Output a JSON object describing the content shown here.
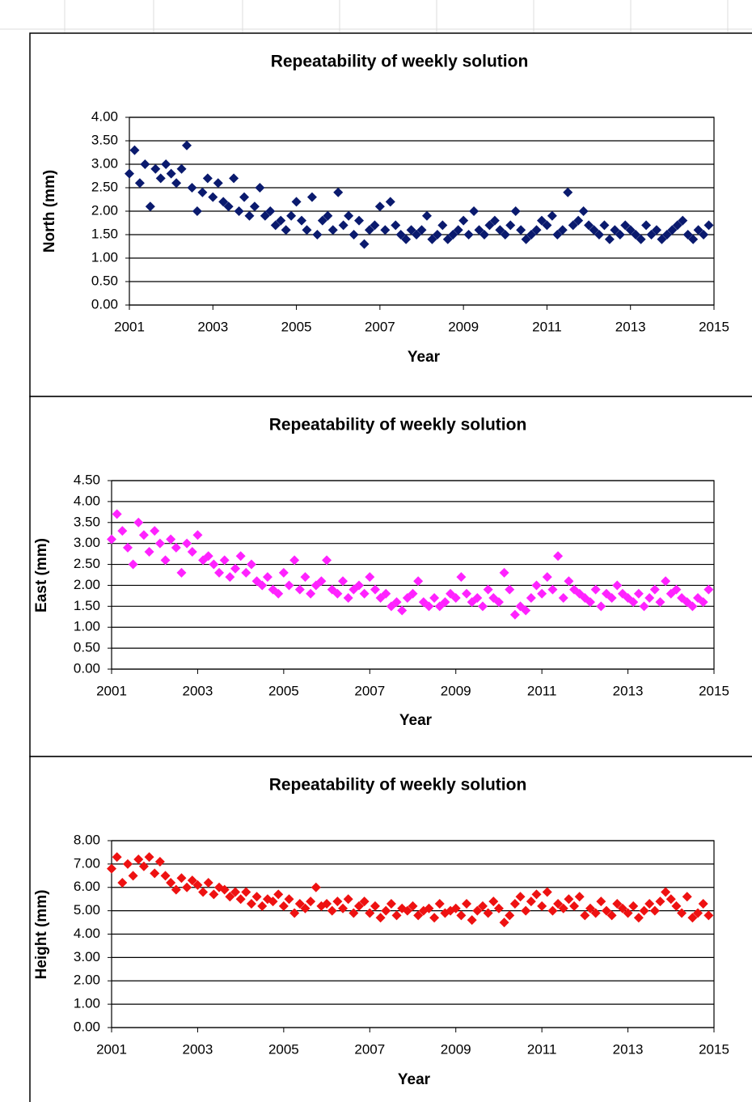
{
  "chart_data": [
    {
      "type": "scatter",
      "title": "Repeatability of weekly solution",
      "xlabel": "Year",
      "ylabel": "North (mm)",
      "color": "#0a1a6e",
      "grid": true,
      "xlim": [
        2001,
        2015
      ],
      "xticks": [
        2001,
        2003,
        2005,
        2007,
        2009,
        2011,
        2013,
        2015
      ],
      "ylim": [
        0,
        4
      ],
      "yticks": [
        {
          "value": 0,
          "label": "0.00"
        },
        {
          "value": 0.5,
          "label": "0.50"
        },
        {
          "value": 1,
          "label": "1.00"
        },
        {
          "value": 1.5,
          "label": "1.50"
        },
        {
          "value": 2,
          "label": "2.00"
        },
        {
          "value": 2.5,
          "label": "2.50"
        },
        {
          "value": 3,
          "label": "3.00"
        },
        {
          "value": 3.5,
          "label": "3.50"
        },
        {
          "value": 4,
          "label": "4.00"
        }
      ],
      "x": [
        2001,
        2001.125,
        2001.25,
        2001.375,
        2001.5,
        2001.625,
        2001.75,
        2001.875,
        2002,
        2002.125,
        2002.25,
        2002.375,
        2002.5,
        2002.625,
        2002.75,
        2002.875,
        2003,
        2003.125,
        2003.25,
        2003.375,
        2003.5,
        2003.625,
        2003.75,
        2003.875,
        2004,
        2004.125,
        2004.25,
        2004.375,
        2004.5,
        2004.625,
        2004.75,
        2004.875,
        2005,
        2005.125,
        2005.25,
        2005.375,
        2005.5,
        2005.625,
        2005.75,
        2005.875,
        2006,
        2006.125,
        2006.25,
        2006.375,
        2006.5,
        2006.625,
        2006.75,
        2006.875,
        2007,
        2007.125,
        2007.25,
        2007.375,
        2007.5,
        2007.625,
        2007.75,
        2007.875,
        2008,
        2008.125,
        2008.25,
        2008.375,
        2008.5,
        2008.625,
        2008.75,
        2008.875,
        2009,
        2009.125,
        2009.25,
        2009.375,
        2009.5,
        2009.625,
        2009.75,
        2009.875,
        2010,
        2010.125,
        2010.25,
        2010.375,
        2010.5,
        2010.625,
        2010.75,
        2010.875,
        2011,
        2011.125,
        2011.25,
        2011.375,
        2011.5,
        2011.625,
        2011.75,
        2011.875,
        2012,
        2012.125,
        2012.25,
        2012.375,
        2012.5,
        2012.625,
        2012.75,
        2012.875,
        2013,
        2013.125,
        2013.25,
        2013.375,
        2013.5,
        2013.625,
        2013.75,
        2013.875,
        2014,
        2014.125,
        2014.25,
        2014.375,
        2014.5,
        2014.625,
        2014.75,
        2014.875
      ],
      "values": [
        2.8,
        3.3,
        2.6,
        3.0,
        2.1,
        2.9,
        2.7,
        3.0,
        2.8,
        2.6,
        2.9,
        3.4,
        2.5,
        2.0,
        2.4,
        2.7,
        2.3,
        2.6,
        2.2,
        2.1,
        2.7,
        2.0,
        2.3,
        1.9,
        2.1,
        2.5,
        1.9,
        2.0,
        1.7,
        1.8,
        1.6,
        1.9,
        2.2,
        1.8,
        1.6,
        2.3,
        1.5,
        1.8,
        1.9,
        1.6,
        2.4,
        1.7,
        1.9,
        1.5,
        1.8,
        1.3,
        1.6,
        1.7,
        2.1,
        1.6,
        2.2,
        1.7,
        1.5,
        1.4,
        1.6,
        1.5,
        1.6,
        1.9,
        1.4,
        1.5,
        1.7,
        1.4,
        1.5,
        1.6,
        1.8,
        1.5,
        2.0,
        1.6,
        1.5,
        1.7,
        1.8,
        1.6,
        1.5,
        1.7,
        2.0,
        1.6,
        1.4,
        1.5,
        1.6,
        1.8,
        1.7,
        1.9,
        1.5,
        1.6,
        2.4,
        1.7,
        1.8,
        2.0,
        1.7,
        1.6,
        1.5,
        1.7,
        1.4,
        1.6,
        1.5,
        1.7,
        1.6,
        1.5,
        1.4,
        1.7,
        1.5,
        1.6,
        1.4,
        1.5,
        1.6,
        1.7,
        1.8,
        1.5,
        1.4,
        1.6,
        1.5,
        1.7
      ]
    },
    {
      "type": "scatter",
      "title": "Repeatability of weekly solution",
      "xlabel": "Year",
      "ylabel": "East (mm)",
      "color": "#ff22ff",
      "grid": true,
      "xlim": [
        2001,
        2015
      ],
      "xticks": [
        2001,
        2003,
        2005,
        2007,
        2009,
        2011,
        2013,
        2015
      ],
      "ylim": [
        0,
        4.5
      ],
      "yticks": [
        {
          "value": 0,
          "label": "0.00"
        },
        {
          "value": 0.5,
          "label": "0.50"
        },
        {
          "value": 1,
          "label": "1.00"
        },
        {
          "value": 1.5,
          "label": "1.50"
        },
        {
          "value": 2,
          "label": "2.00"
        },
        {
          "value": 2.5,
          "label": "2.50"
        },
        {
          "value": 3,
          "label": "3.00"
        },
        {
          "value": 3.5,
          "label": "3.50"
        },
        {
          "value": 4,
          "label": "4.00"
        },
        {
          "value": 4.5,
          "label": "4.50"
        }
      ],
      "x": [
        2001,
        2001.125,
        2001.25,
        2001.375,
        2001.5,
        2001.625,
        2001.75,
        2001.875,
        2002,
        2002.125,
        2002.25,
        2002.375,
        2002.5,
        2002.625,
        2002.75,
        2002.875,
        2003,
        2003.125,
        2003.25,
        2003.375,
        2003.5,
        2003.625,
        2003.75,
        2003.875,
        2004,
        2004.125,
        2004.25,
        2004.375,
        2004.5,
        2004.625,
        2004.75,
        2004.875,
        2005,
        2005.125,
        2005.25,
        2005.375,
        2005.5,
        2005.625,
        2005.75,
        2005.875,
        2006,
        2006.125,
        2006.25,
        2006.375,
        2006.5,
        2006.625,
        2006.75,
        2006.875,
        2007,
        2007.125,
        2007.25,
        2007.375,
        2007.5,
        2007.625,
        2007.75,
        2007.875,
        2008,
        2008.125,
        2008.25,
        2008.375,
        2008.5,
        2008.625,
        2008.75,
        2008.875,
        2009,
        2009.125,
        2009.25,
        2009.375,
        2009.5,
        2009.625,
        2009.75,
        2009.875,
        2010,
        2010.125,
        2010.25,
        2010.375,
        2010.5,
        2010.625,
        2010.75,
        2010.875,
        2011,
        2011.125,
        2011.25,
        2011.375,
        2011.5,
        2011.625,
        2011.75,
        2011.875,
        2012,
        2012.125,
        2012.25,
        2012.375,
        2012.5,
        2012.625,
        2012.75,
        2012.875,
        2013,
        2013.125,
        2013.25,
        2013.375,
        2013.5,
        2013.625,
        2013.75,
        2013.875,
        2014,
        2014.125,
        2014.25,
        2014.375,
        2014.5,
        2014.625,
        2014.75,
        2014.875
      ],
      "values": [
        3.1,
        3.7,
        3.3,
        2.9,
        2.5,
        3.5,
        3.2,
        2.8,
        3.3,
        3.0,
        2.6,
        3.1,
        2.9,
        2.3,
        3.0,
        2.8,
        3.2,
        2.6,
        2.7,
        2.5,
        2.3,
        2.6,
        2.2,
        2.4,
        2.7,
        2.3,
        2.5,
        2.1,
        2.0,
        2.2,
        1.9,
        1.8,
        2.3,
        2.0,
        2.6,
        1.9,
        2.2,
        1.8,
        2.0,
        2.1,
        2.6,
        1.9,
        1.8,
        2.1,
        1.7,
        1.9,
        2.0,
        1.8,
        2.2,
        1.9,
        1.7,
        1.8,
        1.5,
        1.6,
        1.4,
        1.7,
        1.8,
        2.1,
        1.6,
        1.5,
        1.7,
        1.5,
        1.6,
        1.8,
        1.7,
        2.2,
        1.8,
        1.6,
        1.7,
        1.5,
        1.9,
        1.7,
        1.6,
        2.3,
        1.9,
        1.3,
        1.5,
        1.4,
        1.7,
        2.0,
        1.8,
        2.2,
        1.9,
        2.7,
        1.7,
        2.1,
        1.9,
        1.8,
        1.7,
        1.6,
        1.9,
        1.5,
        1.8,
        1.7,
        2.0,
        1.8,
        1.7,
        1.6,
        1.8,
        1.5,
        1.7,
        1.9,
        1.6,
        2.1,
        1.8,
        1.9,
        1.7,
        1.6,
        1.5,
        1.7,
        1.6,
        1.9
      ]
    },
    {
      "type": "scatter",
      "title": "Repeatability of weekly solution",
      "xlabel": "Year",
      "ylabel": "Height (mm)",
      "color": "#ee1111",
      "grid": true,
      "xlim": [
        2001,
        2015
      ],
      "xticks": [
        2001,
        2003,
        2005,
        2007,
        2009,
        2011,
        2013,
        2015
      ],
      "ylim": [
        0,
        8
      ],
      "yticks": [
        {
          "value": 0,
          "label": "0.00"
        },
        {
          "value": 1,
          "label": "1.00"
        },
        {
          "value": 2,
          "label": "2.00"
        },
        {
          "value": 3,
          "label": "3.00"
        },
        {
          "value": 4,
          "label": "4.00"
        },
        {
          "value": 5,
          "label": "5.00"
        },
        {
          "value": 6,
          "label": "6.00"
        },
        {
          "value": 7,
          "label": "7.00"
        },
        {
          "value": 8,
          "label": "8.00"
        }
      ],
      "x": [
        2001,
        2001.125,
        2001.25,
        2001.375,
        2001.5,
        2001.625,
        2001.75,
        2001.875,
        2002,
        2002.125,
        2002.25,
        2002.375,
        2002.5,
        2002.625,
        2002.75,
        2002.875,
        2003,
        2003.125,
        2003.25,
        2003.375,
        2003.5,
        2003.625,
        2003.75,
        2003.875,
        2004,
        2004.125,
        2004.25,
        2004.375,
        2004.5,
        2004.625,
        2004.75,
        2004.875,
        2005,
        2005.125,
        2005.25,
        2005.375,
        2005.5,
        2005.625,
        2005.75,
        2005.875,
        2006,
        2006.125,
        2006.25,
        2006.375,
        2006.5,
        2006.625,
        2006.75,
        2006.875,
        2007,
        2007.125,
        2007.25,
        2007.375,
        2007.5,
        2007.625,
        2007.75,
        2007.875,
        2008,
        2008.125,
        2008.25,
        2008.375,
        2008.5,
        2008.625,
        2008.75,
        2008.875,
        2009,
        2009.125,
        2009.25,
        2009.375,
        2009.5,
        2009.625,
        2009.75,
        2009.875,
        2010,
        2010.125,
        2010.25,
        2010.375,
        2010.5,
        2010.625,
        2010.75,
        2010.875,
        2011,
        2011.125,
        2011.25,
        2011.375,
        2011.5,
        2011.625,
        2011.75,
        2011.875,
        2012,
        2012.125,
        2012.25,
        2012.375,
        2012.5,
        2012.625,
        2012.75,
        2012.875,
        2013,
        2013.125,
        2013.25,
        2013.375,
        2013.5,
        2013.625,
        2013.75,
        2013.875,
        2014,
        2014.125,
        2014.25,
        2014.375,
        2014.5,
        2014.625,
        2014.75,
        2014.875
      ],
      "values": [
        6.8,
        7.3,
        6.2,
        7.0,
        6.5,
        7.2,
        6.9,
        7.3,
        6.6,
        7.1,
        6.5,
        6.2,
        5.9,
        6.4,
        6.0,
        6.3,
        6.1,
        5.8,
        6.2,
        5.7,
        6.0,
        5.9,
        5.6,
        5.8,
        5.5,
        5.8,
        5.3,
        5.6,
        5.2,
        5.5,
        5.4,
        5.7,
        5.2,
        5.5,
        4.9,
        5.3,
        5.1,
        5.4,
        6.0,
        5.2,
        5.3,
        5.0,
        5.4,
        5.1,
        5.5,
        4.9,
        5.2,
        5.4,
        4.9,
        5.2,
        4.7,
        5.0,
        5.3,
        4.8,
        5.1,
        5.0,
        5.2,
        4.8,
        5.0,
        5.1,
        4.7,
        5.3,
        4.9,
        5.0,
        5.1,
        4.8,
        5.3,
        4.6,
        5.0,
        5.2,
        4.9,
        5.4,
        5.1,
        4.5,
        4.8,
        5.3,
        5.6,
        5.0,
        5.4,
        5.7,
        5.2,
        5.8,
        5.0,
        5.3,
        5.1,
        5.5,
        5.2,
        5.6,
        4.8,
        5.1,
        4.9,
        5.4,
        5.0,
        4.8,
        5.3,
        5.1,
        4.9,
        5.2,
        4.7,
        5.0,
        5.3,
        5.0,
        5.4,
        5.8,
        5.5,
        5.2,
        4.9,
        5.6,
        4.7,
        4.9,
        5.3,
        4.8
      ]
    }
  ]
}
